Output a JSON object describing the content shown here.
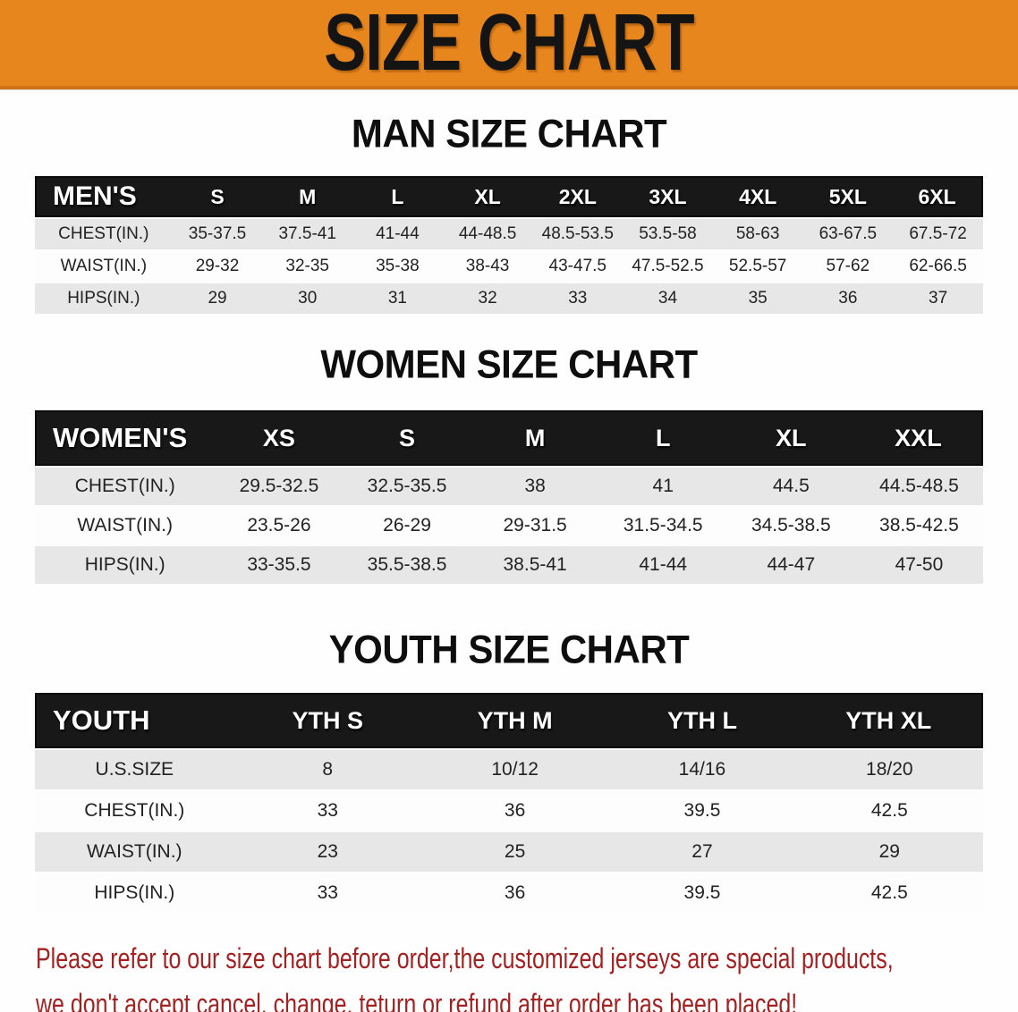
{
  "banner": {
    "title": "SIZE CHART",
    "bg_color": "#E8861E",
    "text_color": "#141414"
  },
  "table_colors": {
    "header_bg": "#181818",
    "header_text": "#ffffff",
    "stripe_bg": "#e7e7e7",
    "row_bg": "#fdfdfd"
  },
  "sections": [
    {
      "title": "MAN SIZE CHART",
      "table": {
        "header": [
          "MEN'S",
          "S",
          "M",
          "L",
          "XL",
          "2XL",
          "3XL",
          "4XL",
          "5XL",
          "6XL"
        ],
        "rows": [
          [
            "CHEST(IN.)",
            "35-37.5",
            "37.5-41",
            "41-44",
            "44-48.5",
            "48.5-53.5",
            "53.5-58",
            "58-63",
            "63-67.5",
            "67.5-72"
          ],
          [
            "WAIST(IN.)",
            "29-32",
            "32-35",
            "35-38",
            "38-43",
            "43-47.5",
            "47.5-52.5",
            "52.5-57",
            "57-62",
            "62-66.5"
          ],
          [
            "HIPS(IN.)",
            "29",
            "30",
            "31",
            "32",
            "33",
            "34",
            "35",
            "36",
            "37"
          ]
        ]
      }
    },
    {
      "title": "WOMEN SIZE CHART",
      "table": {
        "header": [
          "WOMEN'S",
          "XS",
          "S",
          "M",
          "L",
          "XL",
          "XXL"
        ],
        "rows": [
          [
            "CHEST(IN.)",
            "29.5-32.5",
            "32.5-35.5",
            "38",
            "41",
            "44.5",
            "44.5-48.5"
          ],
          [
            "WAIST(IN.)",
            "23.5-26",
            "26-29",
            "29-31.5",
            "31.5-34.5",
            "34.5-38.5",
            "38.5-42.5"
          ],
          [
            "HIPS(IN.)",
            "33-35.5",
            "35.5-38.5",
            "38.5-41",
            "41-44",
            "44-47",
            "47-50"
          ]
        ]
      }
    },
    {
      "title": "YOUTH SIZE CHART",
      "table": {
        "header": [
          "YOUTH",
          "YTH S",
          "YTH M",
          "YTH L",
          "YTH XL"
        ],
        "rows": [
          [
            "U.S.SIZE",
            "8",
            "10/12",
            "14/16",
            "18/20"
          ],
          [
            "CHEST(IN.)",
            "33",
            "36",
            "39.5",
            "42.5"
          ],
          [
            "WAIST(IN.)",
            "23",
            "25",
            "27",
            "29"
          ],
          [
            "HIPS(IN.)",
            "33",
            "36",
            "39.5",
            "42.5"
          ]
        ]
      }
    }
  ],
  "footer": {
    "lines": [
      "Please refer to our size chart before order,the customized jerseys are special products,",
      "we don't accept cancel, change, teturn or refund after order has been placed!"
    ],
    "text_color": "#A32121"
  }
}
